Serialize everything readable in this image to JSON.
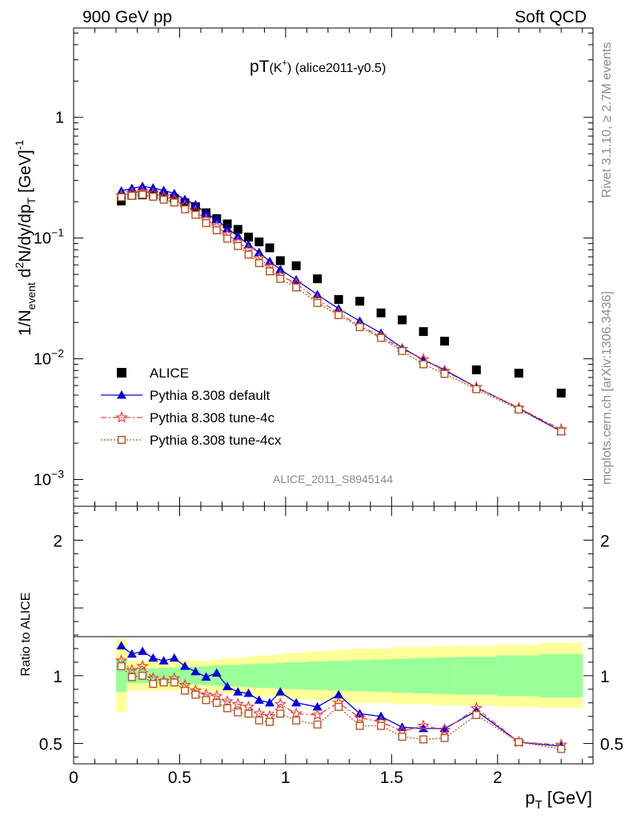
{
  "header": {
    "left": "900 GeV pp",
    "right": "Soft QCD"
  },
  "side_text": {
    "rivet": "Rivet 3.1.10, ≥ 2.7M events",
    "mcplots": "mcplots.cern.ch [arXiv:1306.3436]"
  },
  "watermark": "ALICE_2011_S8945144",
  "colors": {
    "alice": "#000000",
    "default": "#0000dd",
    "tune4c": "#e8413f",
    "tune4cx": "#b5561e",
    "band_inner": "#99ff99",
    "band_outer": "#ffff99"
  },
  "chart_data": [
    {
      "type": "scatter",
      "panel": "main",
      "title": {
        "main": "pT",
        "sub": "(K",
        "sup": "+",
        "tail": ") (alice2011-y0.5)"
      },
      "ylabel": {
        "a": "1/N",
        "b": "event",
        "c": " d",
        "d": "2",
        "e": "N/dy/dp",
        "f": "T",
        "g": " [GeV]",
        "h": "-1"
      },
      "yscale": "log",
      "ylim": [
        0.0006,
        5.5
      ],
      "xlim": [
        0,
        2.45
      ],
      "y_ticks": [
        {
          "value": 1,
          "base": "1",
          "exp": ""
        },
        {
          "value": 0.1,
          "base": "10",
          "exp": "−1"
        },
        {
          "value": 0.01,
          "base": "10",
          "exp": "−2"
        },
        {
          "value": 0.001,
          "base": "10",
          "exp": "−3"
        }
      ],
      "legend_position": "lower-left",
      "x": [
        0.225,
        0.275,
        0.325,
        0.375,
        0.425,
        0.475,
        0.525,
        0.575,
        0.625,
        0.675,
        0.725,
        0.775,
        0.825,
        0.875,
        0.925,
        0.975,
        1.05,
        1.15,
        1.25,
        1.35,
        1.45,
        1.55,
        1.65,
        1.75,
        1.9,
        2.1,
        2.3
      ],
      "series": [
        {
          "name": "ALICE",
          "key": "alice",
          "marker": "square",
          "values": [
            0.203,
            0.226,
            0.228,
            0.228,
            0.222,
            0.213,
            0.196,
            0.182,
            0.162,
            0.145,
            0.131,
            0.118,
            0.102,
            0.093,
            0.083,
            0.065,
            0.059,
            0.046,
            0.031,
            0.03,
            0.024,
            0.021,
            0.0168,
            0.014,
            0.0081,
            0.0076,
            0.0052
          ]
        },
        {
          "name": "Pythia 8.308 default",
          "key": "default",
          "marker": "triangle",
          "line": "solid",
          "values": [
            0.245,
            0.258,
            0.268,
            0.26,
            0.248,
            0.234,
            0.209,
            0.189,
            0.16,
            0.142,
            0.12,
            0.104,
            0.088,
            0.076,
            0.064,
            0.055,
            0.045,
            0.034,
            0.026,
            0.0205,
            0.0163,
            0.0123,
            0.0098,
            0.0081,
            0.0058,
            0.0039,
            0.0025
          ]
        },
        {
          "name": "Pythia 8.308 tune-4c",
          "key": "tune4c",
          "marker": "star",
          "line": "dashdot",
          "values": [
            0.225,
            0.236,
            0.242,
            0.234,
            0.22,
            0.209,
            0.186,
            0.167,
            0.143,
            0.125,
            0.107,
            0.093,
            0.08,
            0.068,
            0.058,
            0.049,
            0.042,
            0.031,
            0.024,
            0.0187,
            0.0153,
            0.012,
            0.0099,
            0.0079,
            0.0058,
            0.0039,
            0.0026
          ]
        },
        {
          "name": "Pythia 8.308 tune-4cx",
          "key": "tune4cx",
          "marker": "open-square",
          "line": "dotted",
          "values": [
            0.218,
            0.224,
            0.229,
            0.22,
            0.208,
            0.197,
            0.173,
            0.156,
            0.133,
            0.116,
            0.099,
            0.086,
            0.073,
            0.062,
            0.053,
            0.046,
            0.039,
            0.029,
            0.023,
            0.0183,
            0.0149,
            0.0116,
            0.009,
            0.0075,
            0.0056,
            0.0038,
            0.0025
          ]
        }
      ]
    },
    {
      "type": "line",
      "panel": "ratio",
      "ylabel": "Ratio to ALICE",
      "ylim": [
        0.35,
        2.25
      ],
      "xlim": [
        0,
        2.45
      ],
      "xlabel": {
        "p": "p",
        "sub": "T",
        "tail": " [GeV]"
      },
      "x_ticks": [
        {
          "value": 0,
          "label": "0"
        },
        {
          "value": 0.5,
          "label": "0.5"
        },
        {
          "value": 1,
          "label": "1"
        },
        {
          "value": 1.5,
          "label": "1.5"
        },
        {
          "value": 2,
          "label": "2"
        }
      ],
      "y_ticks": [
        {
          "value": 0.5,
          "label": "0.5"
        },
        {
          "value": 1,
          "label": "1"
        },
        {
          "value": 2,
          "label": "2"
        }
      ],
      "bins": [
        [
          0.2,
          0.25
        ],
        [
          0.25,
          0.3
        ],
        [
          0.3,
          0.35
        ],
        [
          0.35,
          0.4
        ],
        [
          0.4,
          0.45
        ],
        [
          0.45,
          0.5
        ],
        [
          0.5,
          0.55
        ],
        [
          0.55,
          0.6
        ],
        [
          0.6,
          0.65
        ],
        [
          0.65,
          0.7
        ],
        [
          0.7,
          0.75
        ],
        [
          0.75,
          0.8
        ],
        [
          0.8,
          0.85
        ],
        [
          0.85,
          0.9
        ],
        [
          0.9,
          0.95
        ],
        [
          0.95,
          1.0
        ],
        [
          1.0,
          1.1
        ],
        [
          1.1,
          1.2
        ],
        [
          1.2,
          1.3
        ],
        [
          1.3,
          1.4
        ],
        [
          1.4,
          1.5
        ],
        [
          1.5,
          1.6
        ],
        [
          1.6,
          1.7
        ],
        [
          1.7,
          1.8
        ],
        [
          1.8,
          2.0
        ],
        [
          2.0,
          2.2
        ],
        [
          2.2,
          2.4
        ]
      ],
      "band_inner_halfwidth": [
        0.12,
        0.055,
        0.055,
        0.055,
        0.06,
        0.06,
        0.065,
        0.065,
        0.07,
        0.075,
        0.08,
        0.08,
        0.085,
        0.09,
        0.09,
        0.095,
        0.1,
        0.105,
        0.11,
        0.115,
        0.12,
        0.125,
        0.13,
        0.135,
        0.14,
        0.15,
        0.16
      ],
      "band_outer_halfwidth": [
        0.27,
        0.11,
        0.11,
        0.11,
        0.11,
        0.11,
        0.11,
        0.11,
        0.11,
        0.12,
        0.13,
        0.13,
        0.14,
        0.15,
        0.15,
        0.16,
        0.17,
        0.18,
        0.19,
        0.2,
        0.2,
        0.21,
        0.21,
        0.22,
        0.22,
        0.23,
        0.24
      ],
      "series": [
        {
          "name": "Pythia 8.308 default",
          "key": "default",
          "marker": "triangle",
          "line": "solid",
          "values": [
            1.22,
            1.16,
            1.18,
            1.13,
            1.11,
            1.13,
            1.07,
            1.03,
            0.99,
            1.02,
            0.92,
            0.88,
            0.87,
            0.82,
            0.8,
            0.88,
            0.8,
            0.77,
            0.86,
            0.72,
            0.7,
            0.62,
            0.61,
            0.61,
            0.74,
            0.51,
            0.48
          ]
        },
        {
          "name": "Pythia 8.308 tune-4c",
          "key": "tune4c",
          "marker": "star",
          "line": "dashdot",
          "values": [
            1.11,
            1.04,
            1.07,
            0.98,
            0.96,
            0.98,
            0.93,
            0.89,
            0.86,
            0.85,
            0.81,
            0.79,
            0.77,
            0.72,
            0.7,
            0.79,
            0.72,
            0.71,
            0.8,
            0.69,
            0.66,
            0.59,
            0.63,
            0.6,
            0.76,
            0.51,
            0.49
          ]
        },
        {
          "name": "Pythia 8.308 tune-4cx",
          "key": "tune4cx",
          "marker": "open-square",
          "line": "dotted",
          "values": [
            1.07,
            0.99,
            1.0,
            0.94,
            0.95,
            0.95,
            0.89,
            0.86,
            0.82,
            0.8,
            0.76,
            0.73,
            0.72,
            0.67,
            0.66,
            0.72,
            0.67,
            0.64,
            0.77,
            0.63,
            0.63,
            0.55,
            0.53,
            0.54,
            0.71,
            0.51,
            0.46
          ]
        }
      ]
    }
  ]
}
